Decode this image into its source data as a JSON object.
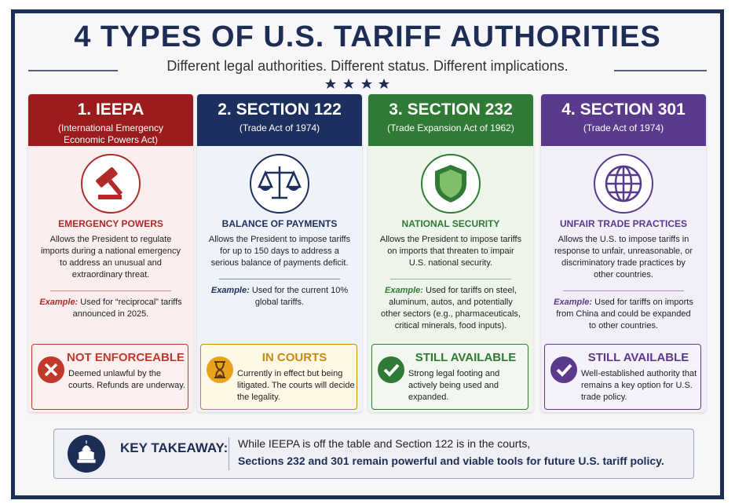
{
  "header": {
    "title": "4 TYPES OF U.S. TARIFF AUTHORITIES",
    "subtitle": "Different legal authorities. Different status. Different implications."
  },
  "cards": [
    {
      "title": "1. IEEPA",
      "subtitle": "(International Emergency Economic Powers Act)",
      "category": "EMERGENCY POWERS",
      "description": "Allows the President to regulate imports during a national emergency to address an unusual and extraordinary threat.",
      "example_label": "Example:",
      "example_text": "Used for “reciprocal” tariffs announced in 2025.",
      "status": "NOT ENFORCEABLE",
      "status_text": "Deemed unlawful by the courts. Refunds are underway."
    },
    {
      "title": "2. SECTION 122",
      "subtitle": "(Trade Act of 1974)",
      "category": "BALANCE OF PAYMENTS",
      "description": "Allows the President to impose tariffs for up to 150 days to address a serious balance of payments deficit.",
      "example_label": "Example:",
      "example_text": "Used for the current 10% global tariffs.",
      "status": "IN COURTS",
      "status_text": "Currently in effect but being litigated. The courts will decide the legality."
    },
    {
      "title": "3. SECTION 232",
      "subtitle": "(Trade Expansion Act of 1962)",
      "category": "NATIONAL SECURITY",
      "description": "Allows the President to impose tariffs on imports that threaten to impair U.S. national security.",
      "example_label": "Example:",
      "example_text": "Used for tariffs on steel, aluminum, autos, and potentially other sectors (e.g., pharmaceuticals, critical minerals, food inputs).",
      "status": "STILL AVAILABLE",
      "status_text": "Strong legal footing and actively being used and expanded."
    },
    {
      "title": "4. SECTION 301",
      "subtitle": "(Trade Act of 1974)",
      "category": "UNFAIR TRADE PRACTICES",
      "description": "Allows the U.S. to impose tariffs in response to unfair, unreasonable, or discriminatory trade practices by other countries.",
      "example_label": "Example:",
      "example_text": "Used for tariffs on imports from China and could be expanded to other countries.",
      "status": "STILL AVAILABLE",
      "status_text": "Well-established authority that remains a key option for U.S. trade policy."
    }
  ],
  "takeaway": {
    "label": "KEY TAKEAWAY:",
    "line1": "While IEEPA is off the table and Section 122 is in the courts,",
    "line2": "Sections 232 and 301 remain powerful and viable tools for future U.S. tariff policy."
  }
}
